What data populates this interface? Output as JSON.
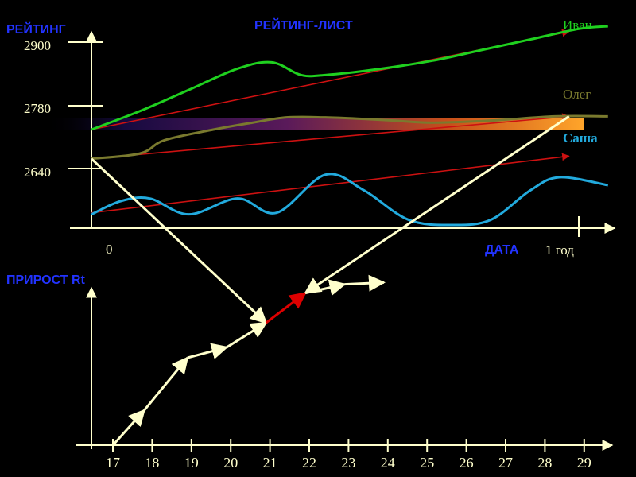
{
  "colors": {
    "background": "#000000",
    "axis": "#ffffcc",
    "title_blue": "#2233ff",
    "ivan": "#1fd01f",
    "oleg": "#7a7a2e",
    "sasha": "#22aadd",
    "trend": "#cc1111",
    "increment": "#ffffcc",
    "increment_highlight": "#dd0000",
    "tick_text": "#ffffcc"
  },
  "chart_data": [
    {
      "type": "line",
      "title": "РЕЙТИНГ-ЛИСТ",
      "ylabel": "РЕЙТИНГ",
      "xlabel": "ДАТА",
      "x_tick_labels": [
        "0",
        "1 год"
      ],
      "y_tick_labels": [
        "2900",
        "2780",
        "2640"
      ],
      "ylim": [
        2520,
        2950
      ],
      "xlim": [
        0,
        1.1
      ],
      "grid": false,
      "series": [
        {
          "name": "Иван",
          "color": "#1fd01f",
          "x": [
            0,
            0.1,
            0.2,
            0.3,
            0.37,
            0.43,
            0.48,
            0.58,
            0.7,
            0.8,
            0.9,
            1.0,
            1.06
          ],
          "y": [
            2735,
            2770,
            2810,
            2850,
            2862,
            2838,
            2838,
            2848,
            2865,
            2885,
            2905,
            2925,
            2930
          ]
        },
        {
          "name": "Олег",
          "color": "#7a7a2e",
          "x": [
            0,
            0.1,
            0.15,
            0.25,
            0.33,
            0.4,
            0.48,
            0.56,
            0.62,
            0.7,
            0.82,
            0.95,
            1.06
          ],
          "y": [
            2680,
            2690,
            2715,
            2735,
            2748,
            2758,
            2758,
            2755,
            2752,
            2748,
            2752,
            2760,
            2760
          ]
        },
        {
          "name": "Саша",
          "color": "#22aadd",
          "x": [
            0,
            0.06,
            0.12,
            0.2,
            0.3,
            0.38,
            0.48,
            0.56,
            0.65,
            0.74,
            0.82,
            0.9,
            0.96,
            1.06
          ],
          "y": [
            2575,
            2600,
            2605,
            2575,
            2605,
            2578,
            2650,
            2620,
            2565,
            2555,
            2565,
            2620,
            2645,
            2630
          ]
        }
      ],
      "trend_lines": [
        {
          "series": "Иван",
          "from": [
            0,
            2735
          ],
          "to": [
            0.98,
            2920
          ]
        },
        {
          "series": "Олег",
          "from": [
            0,
            2680
          ],
          "to": [
            0.98,
            2760
          ]
        },
        {
          "series": "Саша",
          "from": [
            0,
            2578
          ],
          "to": [
            0.98,
            2685
          ]
        }
      ],
      "gradient_band_y": 2740
    },
    {
      "type": "line",
      "title": "",
      "ylabel": "ПРИРОСТ Rt",
      "xlabel": "",
      "categories": [
        "17",
        "18",
        "19",
        "20",
        "21",
        "22",
        "23",
        "24",
        "25",
        "26",
        "27",
        "28",
        "29"
      ],
      "increment_path": {
        "x": [
          17,
          17.8,
          18.9,
          19.9,
          20.9,
          21.9,
          22.9,
          23.9
        ],
        "y": [
          0.0,
          0.2,
          0.5,
          0.56,
          0.7,
          0.87,
          0.92,
          0.93
        ],
        "highlight_segment_index": 4
      }
    }
  ],
  "connectors": [
    {
      "from": "Олег-start",
      "to": "increment-21"
    },
    {
      "from": "increment-22",
      "to": "Олег-end"
    }
  ]
}
